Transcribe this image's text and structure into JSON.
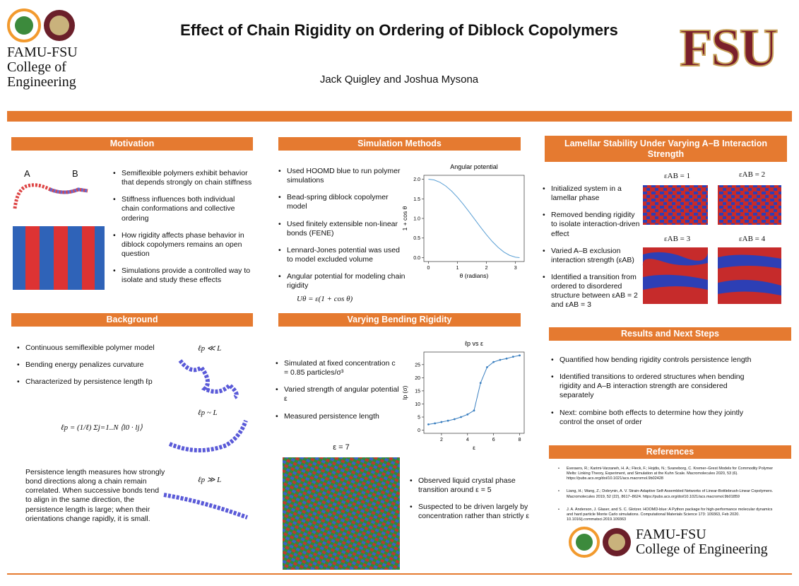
{
  "header": {
    "title": "Effect of Chain Rigidity on Ordering of Diblock Copolymers",
    "authors": "Jack Quigley and Joshua Mysona",
    "left_logo_text": [
      "FAMU-FSU",
      "College of",
      "Engineering"
    ],
    "right_logo_text": "FSU"
  },
  "motivation": {
    "heading": "Motivation",
    "image_labels": [
      "A",
      "B"
    ],
    "bullets": [
      "Semiflexible polymers exhibit behavior that depends strongly on chain stiffness",
      "Stiffness influences both individual chain conformations and collective ordering",
      "How rigidity affects phase behavior in diblock copolymers remains an open question",
      "Simulations provide a controlled way to isolate and study these effects"
    ]
  },
  "simulation_methods": {
    "heading": "Simulation Methods",
    "bullets": [
      "Used HOOMD blue to run polymer simulations",
      "Bead-spring diblock copolymer model",
      "Used finitely extensible non-linear bonds (FENE)",
      "Lennard-Jones potential was used to model excluded volume",
      "Angular potential for modeling chain rigidity"
    ],
    "equation": "Uθ = ε(1 + cos θ)"
  },
  "background": {
    "heading": "Background",
    "bullets": [
      "Continuous semiflexible polymer model",
      "Bending energy penalizes curvature",
      "Characterized by persistence length ℓp"
    ],
    "regime_labels": [
      "ℓp ≪ L",
      "ℓp ~ L",
      "ℓp ≫ L"
    ],
    "equation": "ℓp = (1/ℓ) Σj=1..N ⟨l0 · lj⟩",
    "paragraph": "Persistence length measures how strongly bond directions along a chain remain correlated. When successive bonds tend to align in the same direction, the persistence length is large; when their orientations change rapidly, it is small."
  },
  "bending": {
    "heading": "Varying Bending Rigidity",
    "bullets": [
      "Simulated at fixed concentration c = 0.85 particles/σ³",
      "Varied strength of angular potential ε",
      "Measured persistence length"
    ],
    "image_label": "ε = 7",
    "bullets2": [
      "Observed liquid crystal phase transition around ε = 5",
      "Suspected to be driven largely by concentration rather than strictly ε"
    ]
  },
  "lamellar": {
    "heading": "Lamellar Stability Under Varying A–B Interaction Strength",
    "panel_labels": [
      "εAB = 1",
      "εAB = 2",
      "εAB = 3",
      "εAB = 4"
    ],
    "bullets": [
      "Initialized system in a lamellar phase",
      "Removed bending rigidity to isolate interaction-driven effect",
      "Varied A–B exclusion interaction strength (εAB)",
      "Identified a transition from ordered to disordered structure between εAB = 2 and εAB = 3"
    ]
  },
  "results": {
    "heading": "Results and Next Steps",
    "bullets": [
      "Quantified how bending rigidity controls persistence length",
      "Identified transitions to ordered structures when bending rigidity and A–B interaction strength are considered separately",
      "Next: combine both effects to determine how they jointly control the onset of order"
    ]
  },
  "references": {
    "heading": "References",
    "items": [
      "Everaers, R.; Karimi-Varzaneh, H. A.; Fleck, F.; Hojdis, N.; Svaneborg, C. Kremer–Grest Models for Commodity Polymer Melts: Linking Theory, Experiment, and Simulation at the Kuhn Scale. Macromolecules 2020, 53 (6). https://pubs.acs.org/doi/10.1021/acs.macromol.9b02428",
      "Liang, H.; Wang, Z.; Dobrynin, A. V. Strain-Adaptive Self-Assembled Networks of Linear-Bottlebrush-Linear Copolymers. Macromolecules 2019, 52 (22), 8617–8624. https://pubs.acs.org/doi/10.1021/acs.macromol.9b01859",
      "J. A. Anderson, J. Glaser, and S. C. Glotzer. HOOMD-blue: A Python package for high-performance molecular dynamics and hard particle Monte Carlo simulations. Computational Materials Science 173: 109363, Feb 2020. 10.1016/j.commatsci.2019.109363"
    ]
  },
  "footer": {
    "logo_text": [
      "FAMU-FSU",
      "College of Engineering"
    ]
  },
  "chart_data": [
    {
      "type": "line",
      "title": "Angular potential",
      "xlabel": "θ (radians)",
      "ylabel": "1 + cos θ",
      "color": "#5a9fd4",
      "x": [
        0,
        0.2,
        0.4,
        0.6,
        0.8,
        1.0,
        1.2,
        1.4,
        1.6,
        1.8,
        2.0,
        2.2,
        2.4,
        2.6,
        2.8,
        3.0,
        3.14
      ],
      "values": [
        2.0,
        1.98,
        1.921,
        1.825,
        1.697,
        1.54,
        1.362,
        1.17,
        0.971,
        0.773,
        0.584,
        0.411,
        0.263,
        0.143,
        0.058,
        0.01,
        0.0
      ],
      "xlim": [
        -0.157,
        3.3
      ],
      "ylim": [
        -0.1,
        2.1
      ],
      "xticks": [
        0,
        1,
        2,
        3
      ],
      "yticks": [
        {
          "value": 0,
          "label": "0.0"
        },
        {
          "value": 0.5,
          "label": "0.5"
        },
        {
          "value": 1,
          "label": "1.0"
        },
        {
          "value": 1.5,
          "label": "1.5"
        },
        {
          "value": 2,
          "label": "2.0"
        }
      ],
      "markers": false
    },
    {
      "type": "line",
      "title": "ℓp vs ε",
      "xlabel": "ε",
      "ylabel": "lp (σ)",
      "color": "#3a7fc0",
      "x": [
        1,
        1.5,
        2,
        2.5,
        3,
        3.5,
        4,
        4.5,
        5,
        5.5,
        6,
        6.5,
        7,
        7.5,
        8
      ],
      "values": [
        2.2,
        2.6,
        3.1,
        3.6,
        4.2,
        5.0,
        6.0,
        7.5,
        18,
        24,
        26,
        26.8,
        27.3,
        28,
        28.5
      ],
      "xlim": [
        0.65,
        8.35
      ],
      "ylim": [
        -1.2,
        29.8
      ],
      "xticks": [
        2,
        4,
        6,
        8
      ],
      "yticks": [
        0,
        5,
        10,
        15,
        20,
        25
      ],
      "markers": true
    }
  ]
}
